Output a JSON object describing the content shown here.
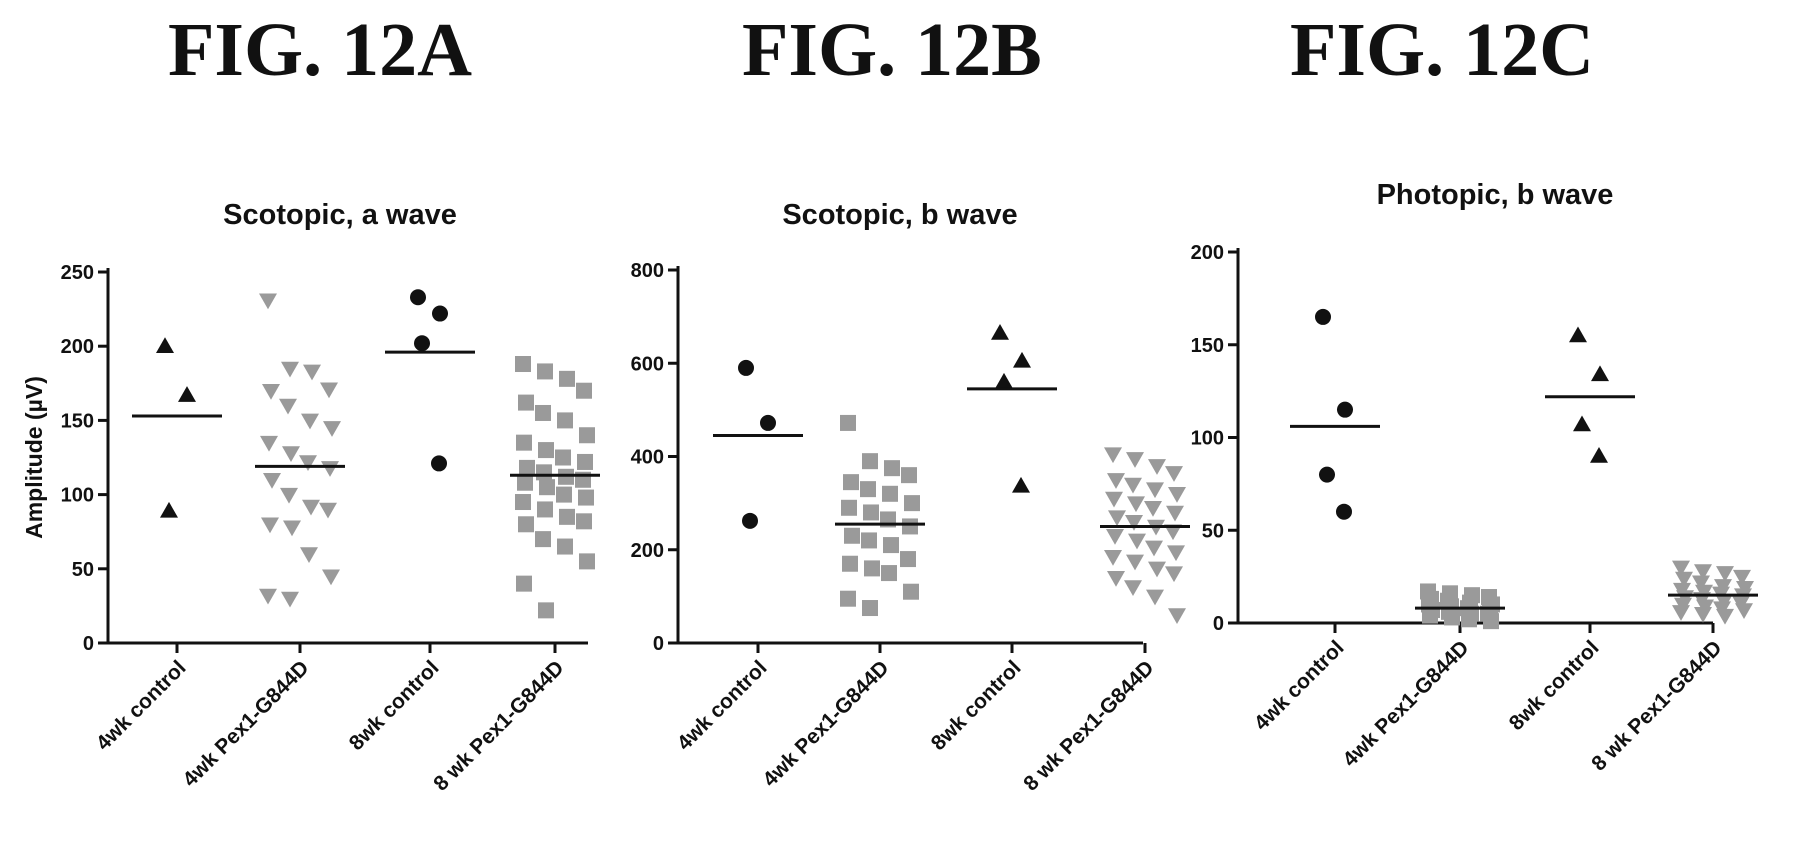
{
  "figure_titles": [
    "FIG. 12A",
    "FIG. 12B",
    "FIG. 12C"
  ],
  "colors": {
    "black": "#111111",
    "gray": "#9a9a9a"
  },
  "chart_data": [
    {
      "type": "scatter",
      "title": "Scotopic, a wave",
      "ylabel": "Amplitude (µV)",
      "ylim": [
        0,
        250
      ],
      "yticks": [
        "0",
        "50",
        "100",
        "150",
        "200",
        "250"
      ],
      "categories": [
        "4wk control",
        "4wk Pex1-G844D",
        "8wk control",
        "8 wk Pex1-G844D"
      ],
      "series": [
        {
          "category": "4wk control",
          "marker": "triangle",
          "color": "black",
          "mean": 153,
          "values": [
            200,
            167,
            89
          ]
        },
        {
          "category": "4wk Pex1-G844D",
          "marker": "triangle-down",
          "color": "gray",
          "mean": 119,
          "values": [
            231,
            185,
            183,
            171,
            170,
            160,
            150,
            145,
            135,
            128,
            122,
            118,
            110,
            100,
            92,
            90,
            80,
            78,
            60,
            45,
            32,
            30
          ]
        },
        {
          "category": "8wk control",
          "marker": "circle",
          "color": "black",
          "mean": 196,
          "values": [
            233,
            222,
            202,
            121
          ]
        },
        {
          "category": "8 wk Pex1-G844D",
          "marker": "square",
          "color": "gray",
          "mean": 113,
          "values": [
            188,
            183,
            178,
            170,
            162,
            155,
            150,
            140,
            135,
            130,
            125,
            122,
            118,
            115,
            112,
            110,
            108,
            105,
            100,
            98,
            95,
            90,
            85,
            82,
            80,
            70,
            65,
            55,
            40,
            22
          ]
        }
      ]
    },
    {
      "type": "scatter",
      "title": "Scotopic, b wave",
      "ylabel": "",
      "ylim": [
        0,
        800
      ],
      "yticks": [
        "0",
        "200",
        "400",
        "600",
        "800"
      ],
      "categories": [
        "4wk control",
        "4wk Pex1-G844D",
        "8wk control",
        "8 wk Pex1-G844D"
      ],
      "series": [
        {
          "category": "4wk control",
          "marker": "circle",
          "color": "black",
          "mean": 445,
          "values": [
            590,
            472,
            262
          ]
        },
        {
          "category": "4wk Pex1-G844D",
          "marker": "square",
          "color": "gray",
          "mean": 255,
          "values": [
            472,
            390,
            375,
            360,
            345,
            330,
            320,
            300,
            290,
            280,
            265,
            250,
            230,
            220,
            210,
            180,
            170,
            160,
            150,
            110,
            95,
            75
          ]
        },
        {
          "category": "8wk control",
          "marker": "triangle",
          "color": "black",
          "mean": 545,
          "values": [
            665,
            605,
            560,
            337
          ]
        },
        {
          "category": "8 wk Pex1-G844D",
          "marker": "triangle-down",
          "color": "gray",
          "mean": 250,
          "values": [
            405,
            395,
            380,
            365,
            350,
            340,
            330,
            320,
            310,
            300,
            290,
            280,
            270,
            260,
            250,
            240,
            230,
            220,
            205,
            195,
            185,
            175,
            160,
            150,
            140,
            120,
            100,
            60
          ]
        }
      ]
    },
    {
      "type": "scatter",
      "title": "Photopic, b wave",
      "ylabel": "",
      "ylim": [
        0,
        200
      ],
      "yticks": [
        "0",
        "50",
        "100",
        "150",
        "200"
      ],
      "categories": [
        "4wk control",
        "4wk Pex1-G844D",
        "8wk control",
        "8 wk Pex1-G844D"
      ],
      "series": [
        {
          "category": "4wk control",
          "marker": "circle",
          "color": "black",
          "mean": 106,
          "values": [
            165,
            115,
            80,
            60
          ]
        },
        {
          "category": "4wk Pex1-G844D",
          "marker": "square",
          "color": "gray",
          "mean": 8,
          "values": [
            17,
            16,
            15,
            14,
            13,
            12,
            11,
            10,
            10,
            9,
            8,
            8,
            7,
            6,
            5,
            5,
            4,
            3,
            2,
            1
          ]
        },
        {
          "category": "8wk control",
          "marker": "triangle",
          "color": "black",
          "mean": 122,
          "values": [
            155,
            134,
            107,
            90
          ]
        },
        {
          "category": "8 wk Pex1-G844D",
          "marker": "triangle-down",
          "color": "gray",
          "mean": 15,
          "values": [
            30,
            28,
            27,
            25,
            24,
            22,
            20,
            19,
            18,
            17,
            16,
            15,
            14,
            13,
            12,
            11,
            10,
            9,
            8,
            7,
            6,
            5,
            4
          ]
        }
      ]
    }
  ]
}
